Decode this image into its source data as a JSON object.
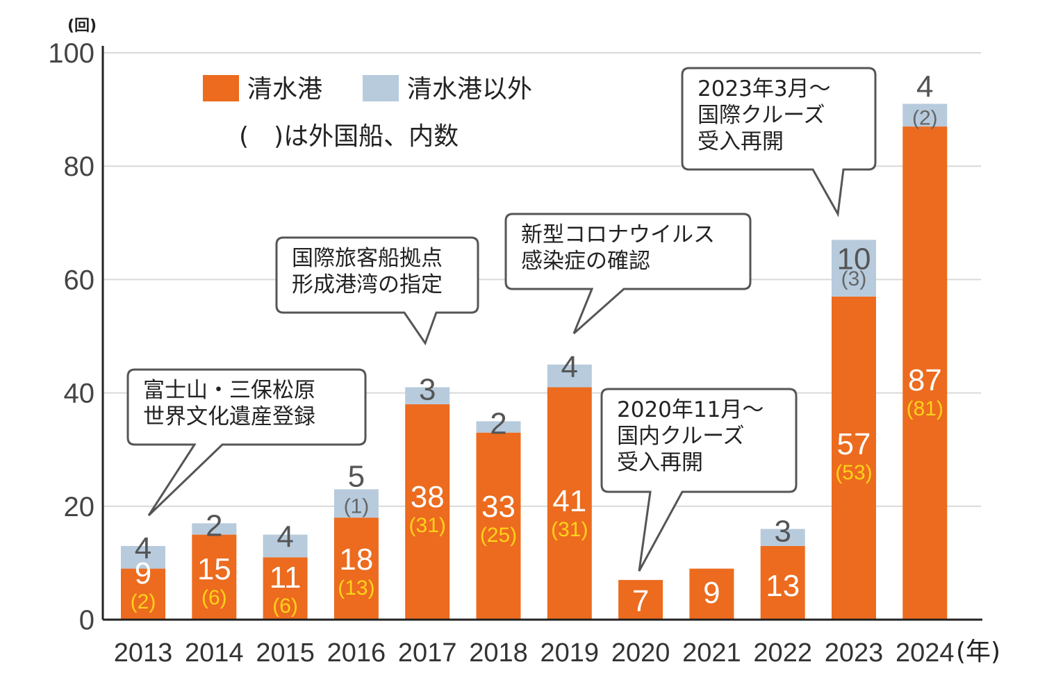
{
  "chart_data": {
    "type": "bar",
    "stacked": true,
    "y_unit": "(回)",
    "x_unit": "(年)",
    "ylim": [
      0,
      100
    ],
    "yticks": [
      "0",
      "20",
      "40",
      "60",
      "80",
      "100"
    ],
    "categories": [
      "2013",
      "2014",
      "2015",
      "2016",
      "2017",
      "2018",
      "2019",
      "2020",
      "2021",
      "2022",
      "2023",
      "2024"
    ],
    "series": [
      {
        "name": "清水港",
        "color": "#ec6b1f",
        "values": [
          9,
          15,
          11,
          18,
          38,
          33,
          41,
          7,
          9,
          13,
          57,
          87
        ],
        "foreign": [
          "(2)",
          "(6)",
          "(6)",
          "(13)",
          "(31)",
          "(25)",
          "(31)",
          "",
          "",
          "",
          "(53)",
          "(81)"
        ]
      },
      {
        "name": "清水港以外",
        "color": "#b7cbdd",
        "values": [
          4,
          2,
          4,
          5,
          3,
          2,
          4,
          0,
          0,
          3,
          10,
          4
        ],
        "foreign": [
          "",
          "",
          "",
          "(1)",
          "",
          "",
          "",
          "",
          "",
          "",
          "(3)",
          "(2)"
        ]
      }
    ],
    "legend": {
      "placement": "top-left",
      "items": [
        "清水港",
        "清水港以外"
      ],
      "note": "(　)は外国船、内数"
    },
    "grid": true
  },
  "annotations": [
    {
      "lines": [
        "富士山・三保松原",
        "世界文化遺産登録"
      ],
      "year": "2013"
    },
    {
      "lines": [
        "国際旅客船拠点",
        "形成港湾の指定"
      ],
      "year": "2017"
    },
    {
      "lines": [
        "新型コロナウイルス",
        "感染症の確認"
      ],
      "year": "2019"
    },
    {
      "lines": [
        "2020年11月～",
        "国内クルーズ",
        "受入再開"
      ],
      "year": "2020"
    },
    {
      "lines": [
        "2023年3月～",
        "国際クルーズ",
        "受入再開"
      ],
      "year": "2023"
    }
  ]
}
